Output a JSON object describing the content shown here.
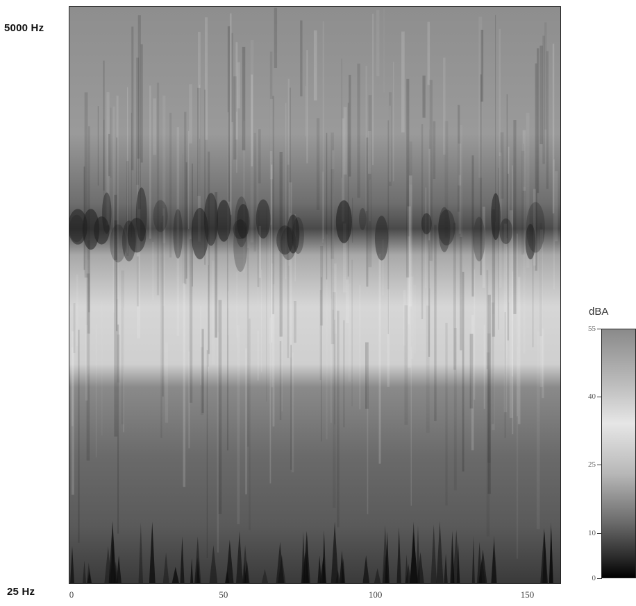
{
  "chart_data": {
    "type": "heatmap",
    "title": "",
    "xlabel": "",
    "ylabel": "",
    "y_range_labels": {
      "top": "5000 Hz",
      "bottom": "25 Hz"
    },
    "x_ticks": [
      {
        "value": 0,
        "label": "0"
      },
      {
        "value": 50,
        "label": "50"
      },
      {
        "value": 100,
        "label": "100"
      },
      {
        "value": 150,
        "label": "150"
      }
    ],
    "xlim": [
      0,
      162
    ],
    "colorbar": {
      "title": "dBA",
      "range": [
        0,
        55
      ],
      "ticks": [
        {
          "value": 55,
          "label": "55"
        },
        {
          "value": 40,
          "label": "40"
        },
        {
          "value": 25,
          "label": "25"
        },
        {
          "value": 10,
          "label": "10"
        },
        {
          "value": 0,
          "label": "0"
        }
      ],
      "colormap": "grayscale, dark = low"
    }
  }
}
